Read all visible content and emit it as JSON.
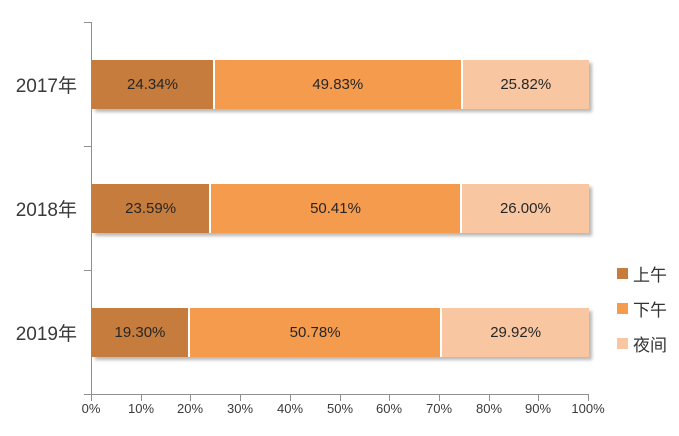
{
  "chart_data": {
    "type": "bar",
    "orientation": "horizontal",
    "stacked": true,
    "title": "",
    "categories": [
      "2017年",
      "2018年",
      "2019年"
    ],
    "series": [
      {
        "name": "上午",
        "color": "#C57C3C",
        "values": [
          24.34,
          23.59,
          19.3
        ],
        "labels": [
          "24.34%",
          "23.59%",
          "19.30%"
        ]
      },
      {
        "name": "下午",
        "color": "#F59B4E",
        "values": [
          49.83,
          50.41,
          50.78
        ],
        "labels": [
          "49.83%",
          "50.41%",
          "50.78%"
        ]
      },
      {
        "name": "夜间",
        "color": "#F8C7A2",
        "values": [
          25.82,
          26.0,
          29.92
        ],
        "labels": [
          "25.82%",
          "26.00%",
          "29.92%"
        ]
      }
    ],
    "x_axis": {
      "min": 0,
      "max": 100,
      "tick_labels": [
        "0%",
        "10%",
        "20%",
        "30%",
        "40%",
        "50%",
        "60%",
        "70%",
        "80%",
        "90%",
        "100%"
      ]
    },
    "legend": {
      "position": "right",
      "entries": [
        "上午",
        "下午",
        "夜间"
      ]
    },
    "grid": false,
    "colors": {
      "axis": "#8F8F8F",
      "data_label_text": "#262626",
      "category_text": "#3A3A3A",
      "tick_text": "#3A3A3A",
      "background": "#FFFFFF"
    }
  }
}
